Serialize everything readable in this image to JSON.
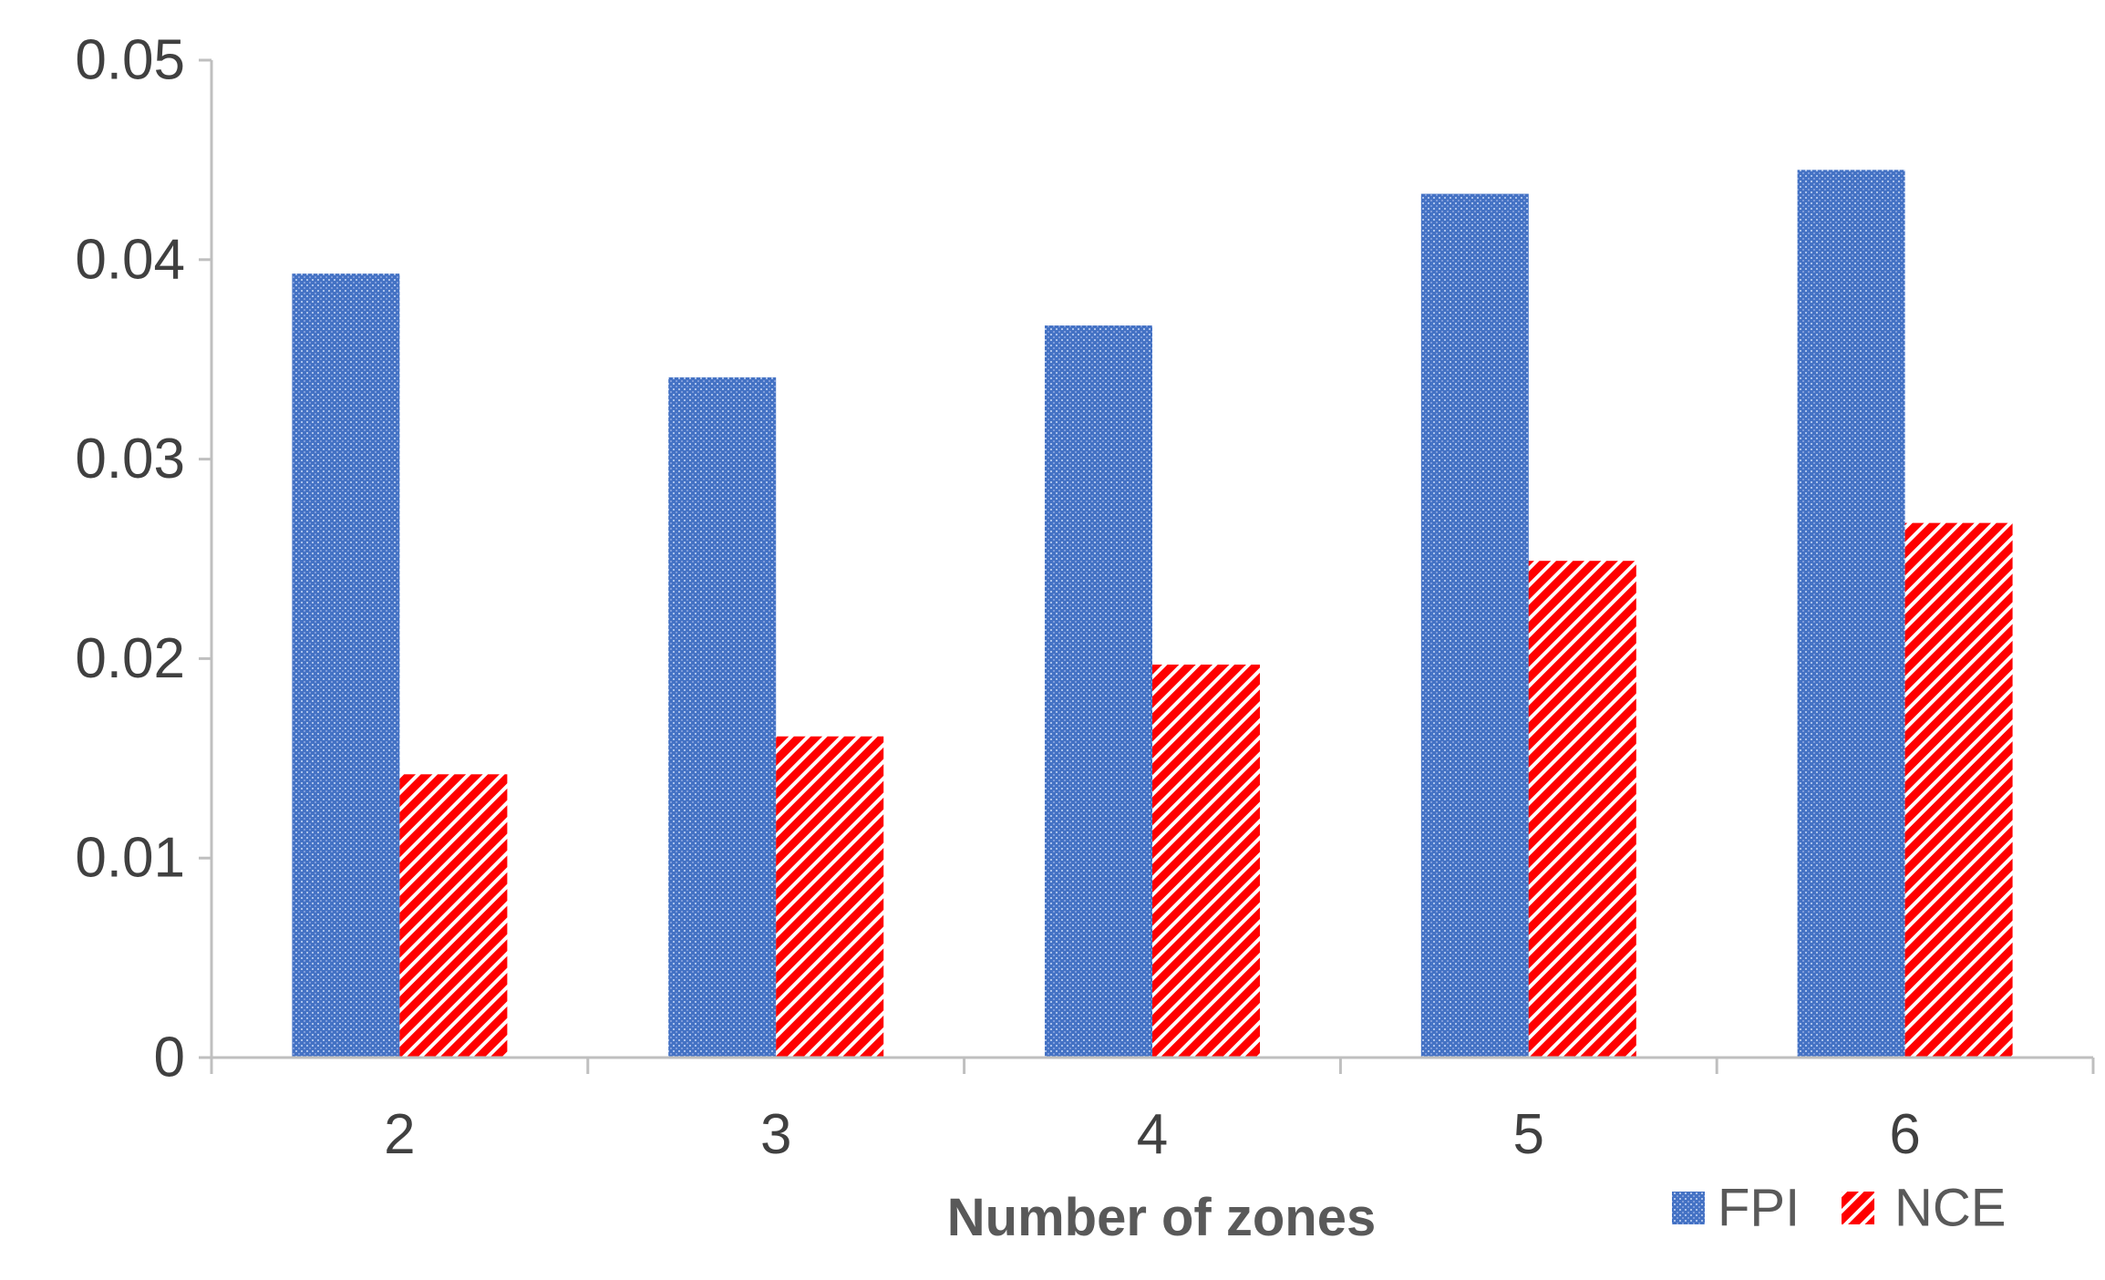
{
  "chart_data": {
    "type": "bar",
    "title": "",
    "xlabel": "Number of zones",
    "ylabel": "",
    "categories": [
      "2",
      "3",
      "4",
      "5",
      "6"
    ],
    "series": [
      {
        "name": "FPI",
        "values": [
          0.0393,
          0.0341,
          0.0367,
          0.0433,
          0.0445
        ],
        "color": "#4472C4",
        "pattern": "dotted-grid"
      },
      {
        "name": "NCE",
        "values": [
          0.0142,
          0.0161,
          0.0197,
          0.0249,
          0.0268
        ],
        "color": "#FF0000",
        "pattern": "diagonal-stripes"
      }
    ],
    "yticks": [
      "0",
      "0.01",
      "0.02",
      "0.03",
      "0.04",
      "0.05"
    ],
    "ylim": [
      0,
      0.05
    ],
    "grid": false,
    "legend_position": "bottom-right",
    "axis_color": "#BFBFBF"
  }
}
